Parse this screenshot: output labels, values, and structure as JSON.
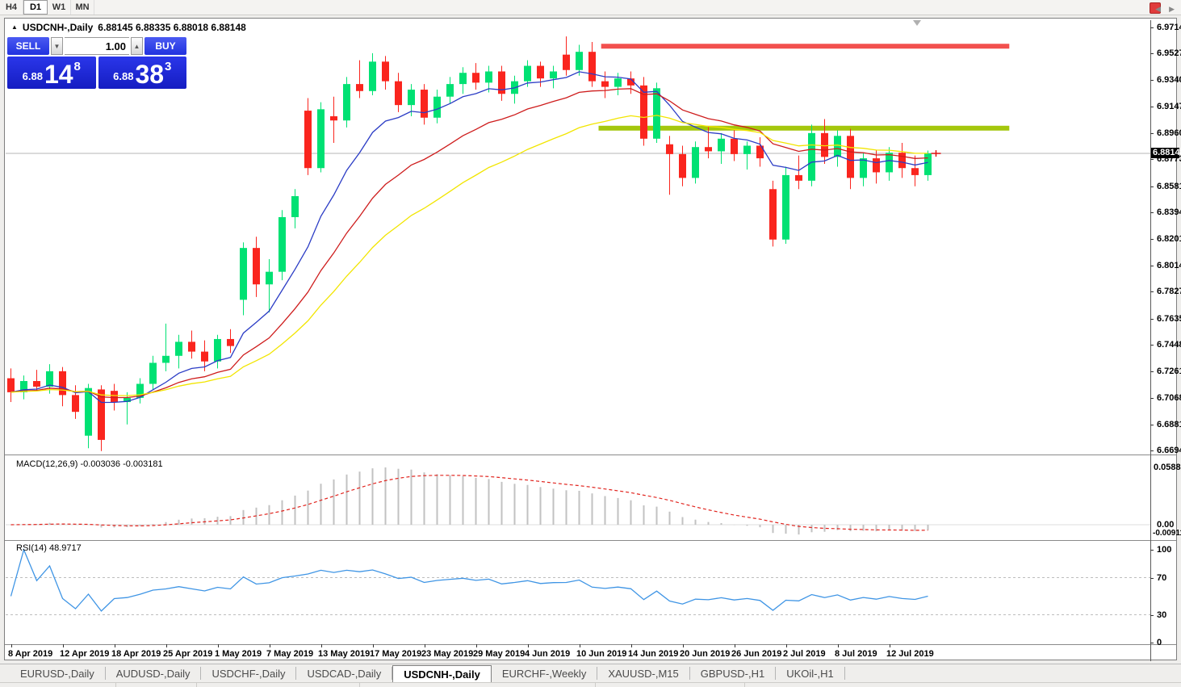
{
  "toolbar": {
    "timeframes": [
      {
        "label": "H4",
        "active": false
      },
      {
        "label": "D1",
        "active": true
      },
      {
        "label": "W1",
        "active": false
      },
      {
        "label": "MN",
        "active": false
      }
    ]
  },
  "chart": {
    "title_symbol": "USDCNH-,Daily",
    "title_ohlc": "6.88145 6.88335 6.88018 6.88148",
    "trade_widget": {
      "sell_label": "SELL",
      "buy_label": "BUY",
      "volume": "1.00",
      "sell_price_prefix": "6.88",
      "sell_price_big": "14",
      "sell_price_sup": "8",
      "buy_price_prefix": "6.88",
      "buy_price_big": "38",
      "buy_price_sup": "3"
    }
  },
  "chart_data": {
    "type": "candlestick",
    "symbol": "USDCNH-",
    "timeframe": "Daily",
    "current_price_label": "6.88148",
    "current_price_value": 6.88148,
    "price_axis_ticks": [
      "6.97140",
      "6.95270",
      "6.93400",
      "6.91475",
      "6.89605",
      "6.87735",
      "6.85810",
      "6.83940",
      "6.82015",
      "6.80145",
      "6.78275",
      "6.76350",
      "6.74480",
      "6.72610",
      "6.70685",
      "6.68815",
      "6.66945"
    ],
    "price_axis_top": 6.9714,
    "price_axis_bottom": 6.66945,
    "date_ticks": [
      "8 Apr 2019",
      "12 Apr 2019",
      "18 Apr 2019",
      "25 Apr 2019",
      "1 May 2019",
      "7 May 2019",
      "13 May 2019",
      "17 May 2019",
      "23 May 2019",
      "29 May 2019",
      "4 Jun 2019",
      "10 Jun 2019",
      "14 Jun 2019",
      "20 Jun 2019",
      "26 Jun 2019",
      "2 Jul 2019",
      "8 Jul 2019",
      "12 Jul 2019"
    ],
    "bars_per_date_tick": 4,
    "candles_ohlc": [
      [
        6.721,
        6.728,
        6.704,
        6.711
      ],
      [
        6.711,
        6.723,
        6.706,
        6.719
      ],
      [
        6.719,
        6.727,
        6.712,
        6.715
      ],
      [
        6.715,
        6.731,
        6.71,
        6.726
      ],
      [
        6.726,
        6.729,
        6.701,
        6.709
      ],
      [
        6.709,
        6.716,
        6.692,
        6.697
      ],
      [
        6.68,
        6.717,
        6.671,
        6.714
      ],
      [
        6.713,
        6.716,
        6.669,
        6.677
      ],
      [
        6.712,
        6.717,
        6.698,
        6.704
      ],
      [
        6.704,
        6.711,
        6.688,
        6.707
      ],
      [
        6.707,
        6.721,
        6.703,
        6.717
      ],
      [
        6.717,
        6.737,
        6.713,
        6.732
      ],
      [
        6.732,
        6.76,
        6.726,
        6.737
      ],
      [
        6.737,
        6.752,
        6.728,
        6.747
      ],
      [
        6.747,
        6.755,
        6.735,
        6.74
      ],
      [
        6.74,
        6.748,
        6.726,
        6.733
      ],
      [
        6.733,
        6.752,
        6.728,
        6.749
      ],
      [
        6.749,
        6.756,
        6.739,
        6.744
      ],
      [
        6.777,
        6.818,
        6.766,
        6.814
      ],
      [
        6.814,
        6.822,
        6.779,
        6.788
      ],
      [
        6.788,
        6.806,
        6.768,
        6.797
      ],
      [
        6.797,
        6.841,
        6.791,
        6.836
      ],
      [
        6.836,
        6.856,
        6.828,
        6.851
      ],
      [
        6.912,
        6.921,
        6.866,
        6.871
      ],
      [
        6.871,
        6.918,
        6.868,
        6.913
      ],
      [
        6.908,
        6.922,
        6.889,
        6.905
      ],
      [
        6.905,
        6.936,
        6.9,
        6.931
      ],
      [
        6.931,
        6.948,
        6.921,
        6.926
      ],
      [
        6.926,
        6.953,
        6.923,
        6.947
      ],
      [
        6.947,
        6.951,
        6.927,
        6.933
      ],
      [
        6.933,
        6.939,
        6.911,
        6.916
      ],
      [
        6.916,
        6.931,
        6.908,
        6.927
      ],
      [
        6.927,
        6.931,
        6.902,
        6.907
      ],
      [
        6.907,
        6.927,
        6.903,
        6.922
      ],
      [
        6.922,
        6.936,
        6.917,
        6.931
      ],
      [
        6.931,
        6.943,
        6.924,
        6.939
      ],
      [
        6.939,
        6.946,
        6.927,
        6.932
      ],
      [
        6.932,
        6.944,
        6.925,
        6.94
      ],
      [
        6.94,
        6.944,
        6.919,
        6.924
      ],
      [
        6.924,
        6.937,
        6.917,
        6.933
      ],
      [
        6.933,
        6.948,
        6.929,
        6.944
      ],
      [
        6.944,
        6.947,
        6.929,
        6.935
      ],
      [
        6.935,
        6.944,
        6.928,
        6.94
      ],
      [
        6.952,
        6.965,
        6.937,
        6.941
      ],
      [
        6.941,
        6.959,
        6.937,
        6.954
      ],
      [
        6.954,
        6.961,
        6.929,
        6.933
      ],
      [
        6.933,
        6.94,
        6.921,
        6.929
      ],
      [
        6.929,
        6.939,
        6.923,
        6.935
      ],
      [
        6.935,
        6.94,
        6.924,
        6.93
      ],
      [
        6.93,
        6.936,
        6.887,
        6.892
      ],
      [
        6.892,
        6.932,
        6.889,
        6.928
      ],
      [
        6.888,
        6.894,
        6.852,
        6.881
      ],
      [
        6.881,
        6.887,
        6.858,
        6.864
      ],
      [
        6.864,
        6.89,
        6.86,
        6.886
      ],
      [
        6.886,
        6.901,
        6.878,
        6.883
      ],
      [
        6.883,
        6.896,
        6.874,
        6.892
      ],
      [
        6.892,
        6.898,
        6.876,
        6.881
      ],
      [
        6.881,
        6.89,
        6.87,
        6.887
      ],
      [
        6.887,
        6.893,
        6.872,
        6.878
      ],
      [
        6.856,
        6.862,
        6.815,
        6.82
      ],
      [
        6.82,
        6.872,
        6.817,
        6.866
      ],
      [
        6.866,
        6.88,
        6.856,
        6.862
      ],
      [
        6.862,
        6.902,
        6.858,
        6.896
      ],
      [
        6.896,
        6.906,
        6.874,
        6.879
      ],
      [
        6.879,
        6.898,
        6.872,
        6.894
      ],
      [
        6.894,
        6.899,
        6.856,
        6.864
      ],
      [
        6.864,
        6.882,
        6.858,
        6.878
      ],
      [
        6.878,
        6.884,
        6.86,
        6.868
      ],
      [
        6.868,
        6.886,
        6.862,
        6.882
      ],
      [
        6.882,
        6.889,
        6.864,
        6.871
      ],
      [
        6.871,
        6.88,
        6.858,
        6.866
      ],
      [
        6.866,
        6.8835,
        6.862,
        6.88148
      ]
    ],
    "moving_averages": [
      {
        "name": "MA fast",
        "period": 8,
        "color": "#2b3cc5"
      },
      {
        "name": "MA mid",
        "period": 16,
        "color": "#ce1c1c"
      },
      {
        "name": "MA slow",
        "period": 26,
        "color": "#f2e500"
      }
    ],
    "levels": {
      "resistance": {
        "price": 6.958,
        "start_bar": 45.7,
        "end_bar": 77.3,
        "color": "#f2504e"
      },
      "support": {
        "price": 6.8995,
        "start_bar": 45.5,
        "end_bar": 77.3,
        "color": "#a4c70d"
      }
    },
    "macd": {
      "label": "MACD(12,26,9) -0.003036 -0.003181",
      "fast": 12,
      "slow": 26,
      "signal": 9,
      "axis_max": "0.058851",
      "axis_zero": "0.00",
      "axis_min": "-0.009116",
      "hist_color": "#c2c2c2",
      "signal_color": "#e1241e"
    },
    "rsi": {
      "label": "RSI(14) 48.9717",
      "period": 14,
      "axis_ticks": [
        "100",
        "70",
        "30",
        "0"
      ],
      "level_lines": [
        70,
        30
      ],
      "color": "#3f95e5"
    },
    "colors": {
      "bull": "#00e173",
      "bear": "#fa251e",
      "current_price_line": "#b4b4b4",
      "background": "#ffffff"
    }
  },
  "tabs": [
    {
      "label": "EURUSD-,Daily",
      "active": false
    },
    {
      "label": "AUDUSD-,Daily",
      "active": false
    },
    {
      "label": "USDCHF-,Daily",
      "active": false
    },
    {
      "label": "USDCAD-,Daily",
      "active": false
    },
    {
      "label": "USDCNH-,Daily",
      "active": true
    },
    {
      "label": "EURCHF-,Weekly",
      "active": false
    },
    {
      "label": "XAUUSD-,M15",
      "active": false
    },
    {
      "label": "GBPUSD-,H1",
      "active": false
    },
    {
      "label": "UKOil-,H1",
      "active": false
    }
  ]
}
